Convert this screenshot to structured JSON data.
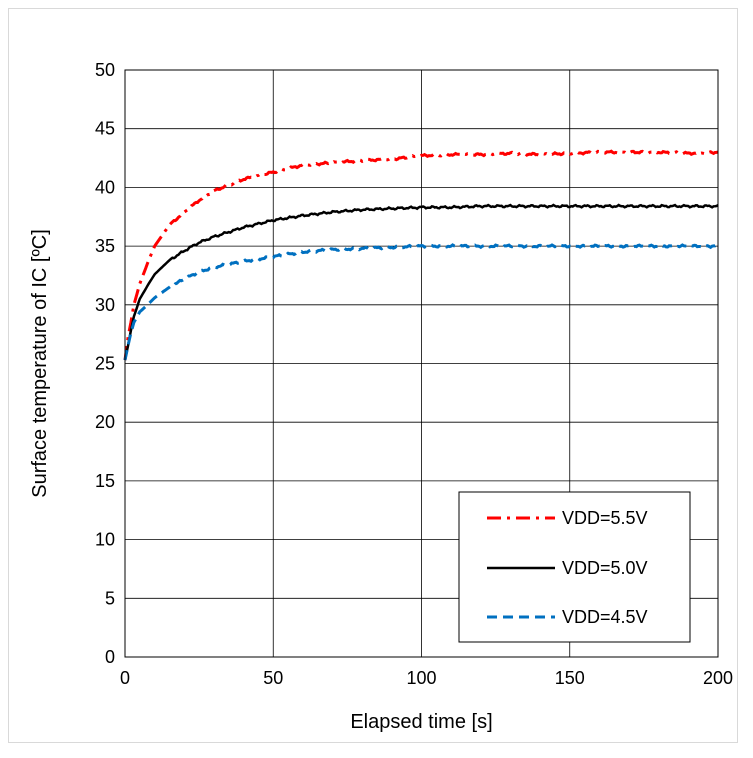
{
  "chart_data": {
    "type": "line",
    "title": "",
    "xlabel": "Elapsed time [s]",
    "ylabel": "Surface temperature of IC [ºC]",
    "xlim": [
      0,
      200
    ],
    "ylim": [
      0,
      50
    ],
    "xticks": [
      "0",
      "50",
      "100",
      "150",
      "200"
    ],
    "yticks": [
      "0",
      "5",
      "10",
      "15",
      "20",
      "25",
      "30",
      "35",
      "40",
      "45",
      "50"
    ],
    "grid": true,
    "legend_position": "bottom-right",
    "series": [
      {
        "name": "VDD=5.5V",
        "color": "#ff0000",
        "dash": "dash-dot",
        "x": [
          0,
          1,
          2,
          3,
          5,
          8,
          10,
          15,
          20,
          25,
          30,
          40,
          50,
          60,
          70,
          80,
          90,
          100,
          110,
          120,
          130,
          140,
          150,
          160,
          170,
          180,
          190,
          200
        ],
        "y": [
          25.3,
          27.2,
          28.5,
          30.0,
          31.8,
          33.8,
          35.0,
          36.8,
          37.9,
          38.9,
          39.7,
          40.7,
          41.3,
          41.9,
          42.1,
          42.3,
          42.4,
          42.7,
          42.8,
          42.8,
          42.9,
          42.8,
          42.9,
          43.0,
          43.0,
          43.0,
          42.9,
          43.0
        ]
      },
      {
        "name": "VDD=5.0V",
        "color": "#000000",
        "dash": "solid",
        "x": [
          0,
          1,
          2,
          3,
          5,
          8,
          10,
          15,
          20,
          25,
          30,
          40,
          50,
          60,
          70,
          80,
          90,
          100,
          110,
          120,
          130,
          140,
          150,
          160,
          170,
          180,
          190,
          200
        ],
        "y": [
          25.3,
          26.5,
          27.8,
          29.0,
          30.5,
          31.8,
          32.6,
          33.8,
          34.6,
          35.3,
          35.8,
          36.6,
          37.2,
          37.6,
          37.9,
          38.1,
          38.2,
          38.3,
          38.3,
          38.4,
          38.4,
          38.4,
          38.4,
          38.4,
          38.4,
          38.4,
          38.4,
          38.4
        ]
      },
      {
        "name": "VDD=4.5V",
        "color": "#0070c0",
        "dash": "dashed",
        "x": [
          0,
          1,
          2,
          3,
          5,
          8,
          10,
          15,
          20,
          25,
          30,
          40,
          50,
          60,
          70,
          80,
          90,
          100,
          110,
          120,
          130,
          140,
          150,
          160,
          170,
          180,
          190,
          200
        ],
        "y": [
          25.3,
          26.5,
          27.6,
          28.5,
          29.4,
          30.1,
          30.6,
          31.5,
          32.2,
          32.8,
          33.2,
          33.7,
          34.1,
          34.5,
          34.7,
          34.8,
          34.9,
          35.0,
          35.0,
          35.0,
          35.0,
          35.0,
          35.0,
          35.0,
          35.0,
          35.0,
          35.0,
          35.0
        ]
      }
    ]
  }
}
